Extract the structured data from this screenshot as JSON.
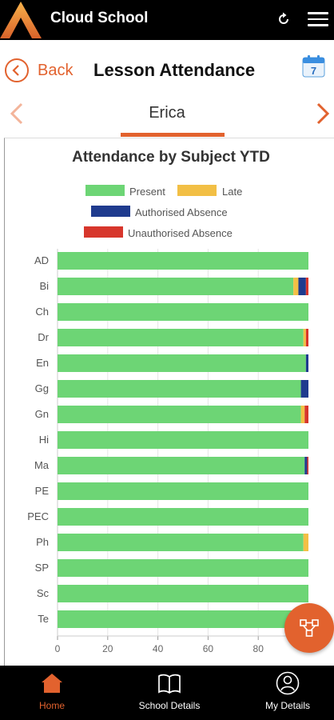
{
  "app": {
    "title": "Cloud School"
  },
  "header": {
    "back_label": "Back",
    "title": "Lesson Attendance",
    "calendar_day": "7"
  },
  "student": {
    "name": "Erica"
  },
  "colors": {
    "accent": "#e2622e",
    "present": "#6dd575",
    "late": "#f2bf45",
    "authorised": "#1f3b8e",
    "unauthorised": "#d7362c"
  },
  "icons": {
    "refresh": "refresh-icon",
    "menu": "hamburger-menu-icon",
    "back": "chevron-left-icon",
    "calendar": "calendar-icon",
    "prev": "chevron-left-icon",
    "next": "chevron-right-icon",
    "fab": "network-icon"
  },
  "chart_data": {
    "type": "bar",
    "orientation": "horizontal",
    "stacked": true,
    "title": "Attendance by Subject YTD",
    "categories": [
      "AD",
      "Bi",
      "Ch",
      "Dr",
      "En",
      "Gg",
      "Gn",
      "Hi",
      "Ma",
      "PE",
      "PEC",
      "Ph",
      "SP",
      "Sc",
      "Te"
    ],
    "series": [
      {
        "name": "Present",
        "color": "#6dd575",
        "values": [
          100,
          94,
          100,
          98,
          99,
          97,
          97,
          100,
          98.5,
          100,
          100,
          98,
          100,
          100,
          100
        ]
      },
      {
        "name": "Late",
        "color": "#f2bf45",
        "values": [
          0,
          2,
          0,
          1,
          0,
          0,
          1.5,
          0,
          0,
          0,
          0,
          2,
          0,
          0,
          0
        ]
      },
      {
        "name": "Authorised Absence",
        "color": "#1f3b8e",
        "values": [
          0,
          3,
          0,
          0,
          1,
          3,
          0,
          0,
          1,
          0,
          0,
          0,
          0,
          0,
          0
        ]
      },
      {
        "name": "Unauthorised Absence",
        "color": "#d7362c",
        "values": [
          0,
          1,
          0,
          1,
          0,
          0,
          1.5,
          0,
          0.5,
          0,
          0,
          0,
          0,
          0,
          0
        ]
      }
    ],
    "x_ticks": [
      "0",
      "20",
      "40",
      "60",
      "80"
    ],
    "xlim": [
      0,
      100
    ],
    "grid": true,
    "legend_position": "top"
  },
  "nav": {
    "items": [
      {
        "label": "Home",
        "icon": "home-icon"
      },
      {
        "label": "School Details",
        "icon": "book-icon"
      },
      {
        "label": "My Details",
        "icon": "user-icon"
      }
    ]
  }
}
